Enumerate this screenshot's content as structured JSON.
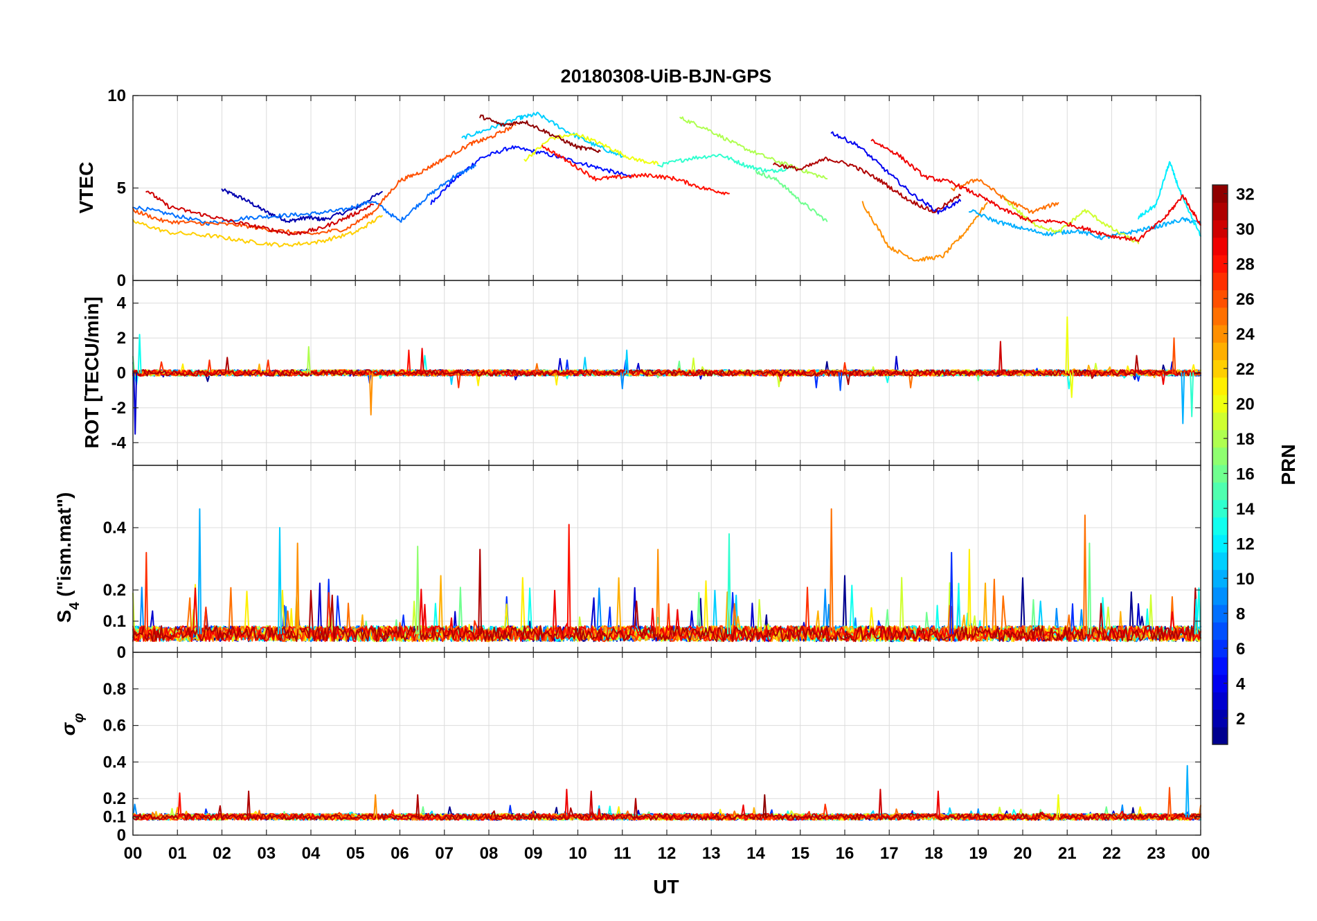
{
  "chart_data": {
    "type": "line",
    "title": "20180308-UiB-BJN-GPS",
    "xlabel": "UT",
    "x_tick_labels": [
      "00",
      "01",
      "02",
      "03",
      "04",
      "05",
      "06",
      "07",
      "08",
      "09",
      "10",
      "11",
      "12",
      "13",
      "14",
      "15",
      "16",
      "17",
      "18",
      "19",
      "20",
      "21",
      "22",
      "23",
      "00"
    ],
    "xlim": [
      0,
      24
    ],
    "grid": true,
    "panels": [
      {
        "id": "vtec",
        "ylabel": "VTEC",
        "ylim": [
          0,
          10
        ],
        "yticks": [
          0,
          5,
          10
        ],
        "ytick_labels": [
          "0",
          "5",
          "10"
        ],
        "series": [
          {
            "prn": 2,
            "x": [
              2.0,
              2.5,
              3.0,
              3.5,
              3.9,
              4.3,
              5.0,
              5.6
            ],
            "values": [
              4.9,
              4.4,
              3.7,
              3.2,
              3.4,
              3.3,
              3.9,
              4.8
            ]
          },
          {
            "prn": 5,
            "x": [
              6.7,
              7.2,
              7.8,
              8.5,
              9.2,
              10.0,
              10.6,
              11.2
            ],
            "values": [
              4.2,
              5.4,
              6.6,
              7.2,
              6.9,
              6.4,
              6.0,
              5.6
            ]
          },
          {
            "prn": 8,
            "x": [
              0.0,
              0.8,
              1.7,
              2.6,
              3.3,
              4.0,
              4.7,
              5.4,
              6.0,
              6.6,
              7.2,
              7.7
            ],
            "values": [
              4.0,
              3.6,
              3.1,
              3.4,
              3.5,
              3.6,
              3.8,
              4.3,
              3.2,
              4.5,
              5.6,
              6.2
            ]
          },
          {
            "prn": 11,
            "x": [
              7.4,
              8.0,
              8.7,
              9.1,
              9.8,
              10.4,
              11.0
            ],
            "values": [
              7.7,
              8.2,
              8.8,
              9.0,
              8.0,
              7.3,
              6.7
            ]
          },
          {
            "prn": 14,
            "x": [
              11.8,
              12.5,
              13.2,
              13.8,
              14.3,
              14.8
            ],
            "values": [
              6.2,
              6.6,
              6.8,
              6.2,
              5.9,
              6.1
            ]
          },
          {
            "prn": 16,
            "x": [
              14.0,
              14.5,
              15.0,
              15.6
            ],
            "values": [
              5.9,
              5.4,
              4.3,
              3.2
            ]
          },
          {
            "prn": 18,
            "x": [
              12.3,
              12.9,
              13.6,
              14.3,
              15.0,
              15.6
            ],
            "values": [
              8.8,
              8.2,
              7.3,
              6.6,
              6.0,
              5.5
            ]
          },
          {
            "prn": 20,
            "x": [
              8.8,
              9.4,
              10.0,
              10.6,
              11.2,
              11.8
            ],
            "values": [
              6.5,
              7.7,
              7.9,
              7.3,
              6.6,
              6.3
            ]
          },
          {
            "prn": 22,
            "x": [
              0.0,
              0.8,
              1.8,
              2.6,
              3.4,
              4.2,
              5.0,
              5.6
            ],
            "values": [
              3.2,
              2.6,
              2.4,
              2.1,
              1.9,
              2.1,
              2.6,
              3.5
            ]
          },
          {
            "prn": 24,
            "x": [
              16.4,
              17.0,
              17.6,
              18.2,
              18.7,
              19.2
            ],
            "values": [
              4.2,
              1.8,
              1.1,
              1.3,
              2.6,
              4.2
            ]
          },
          {
            "prn": 26,
            "x": [
              0.0,
              0.7,
              1.5,
              2.4,
              3.2,
              4.0,
              4.8,
              5.4,
              6.0,
              6.5,
              7.0,
              7.6,
              8.0,
              8.6
            ],
            "values": [
              3.8,
              3.2,
              3.1,
              3.0,
              2.7,
              2.5,
              2.8,
              3.7,
              5.4,
              5.9,
              6.6,
              7.4,
              7.7,
              8.4
            ]
          },
          {
            "prn": 28,
            "x": [
              9.2,
              9.8,
              10.4,
              11.0,
              11.6,
              12.2,
              12.8,
              13.4
            ],
            "values": [
              7.3,
              6.4,
              5.5,
              5.6,
              5.7,
              5.5,
              5.0,
              4.7
            ]
          },
          {
            "prn": 30,
            "x": [
              0.3,
              0.8,
              1.5,
              2.2,
              3.0,
              3.6,
              4.2,
              4.8,
              5.4
            ],
            "values": [
              4.9,
              4.0,
              3.6,
              3.2,
              2.8,
              2.5,
              2.8,
              3.4,
              4.1
            ]
          },
          {
            "prn": 32,
            "x": [
              7.8,
              8.3,
              8.8,
              9.4,
              10.0,
              10.5
            ],
            "values": [
              8.9,
              8.4,
              8.6,
              7.9,
              7.2,
              7.0
            ]
          },
          {
            "prn": 4,
            "x": [
              15.7,
              16.3,
              16.9,
              17.5,
              18.1,
              18.6
            ],
            "values": [
              8.0,
              7.3,
              6.0,
              4.7,
              3.7,
              4.3
            ]
          },
          {
            "prn": 10,
            "x": [
              18.8,
              19.4,
              20.0,
              20.6,
              21.2,
              21.8,
              22.4,
              23.0,
              23.6,
              24.0
            ],
            "values": [
              3.8,
              3.2,
              2.8,
              2.5,
              2.7,
              2.3,
              2.6,
              2.9,
              3.3,
              3.1
            ]
          },
          {
            "prn": 12,
            "x": [
              22.6,
              23.0,
              23.3,
              23.6,
              24.0
            ],
            "values": [
              3.4,
              4.1,
              6.4,
              4.4,
              2.4
            ]
          },
          {
            "prn": 19,
            "x": [
              19.6,
              20.2,
              20.8,
              21.4,
              22.0,
              22.6
            ],
            "values": [
              4.4,
              3.1,
              2.6,
              3.8,
              2.8,
              2.0
            ]
          },
          {
            "prn": 25,
            "x": [
              18.4,
              19.0,
              19.6,
              20.2,
              20.8
            ],
            "values": [
              4.9,
              5.5,
              4.4,
              3.7,
              4.2
            ]
          },
          {
            "prn": 29,
            "x": [
              16.6,
              17.2,
              17.8,
              18.4,
              19.0,
              19.6,
              20.2,
              20.8,
              21.4,
              22.0,
              22.6,
              23.2,
              23.6,
              24.0
            ],
            "values": [
              7.6,
              6.8,
              5.6,
              5.3,
              4.6,
              3.8,
              3.2,
              3.2,
              2.8,
              2.4,
              2.2,
              3.4,
              4.6,
              3.0
            ]
          },
          {
            "prn": 31,
            "x": [
              14.4,
              15.0,
              15.6,
              16.2,
              16.8,
              17.4,
              18.0,
              18.6
            ],
            "values": [
              6.3,
              6.0,
              6.6,
              6.2,
              5.4,
              4.4,
              3.7,
              4.6
            ]
          }
        ]
      },
      {
        "id": "rot",
        "ylabel": "ROT [TECU/min]",
        "ylim": [
          -5.3,
          5.3
        ],
        "yticks": [
          -4,
          -2,
          0,
          2,
          4
        ],
        "ytick_labels": [
          "-4",
          "-2",
          "0",
          "2",
          "4"
        ],
        "spikes": [
          {
            "prn": 3,
            "x": 0.05,
            "value": -3.5
          },
          {
            "prn": 13,
            "x": 0.15,
            "value": 2.2
          },
          {
            "prn": 24,
            "x": 5.35,
            "value": -2.4
          },
          {
            "prn": 28,
            "x": 6.2,
            "value": 1.3
          },
          {
            "prn": 29,
            "x": 6.5,
            "value": 1.4
          },
          {
            "prn": 18,
            "x": 3.95,
            "value": 1.5
          },
          {
            "prn": 11,
            "x": 11.1,
            "value": 1.3
          },
          {
            "prn": 9,
            "x": 11.0,
            "value": -0.9
          },
          {
            "prn": 7,
            "x": 15.9,
            "value": -1.0
          },
          {
            "prn": 30,
            "x": 19.5,
            "value": 1.8
          },
          {
            "prn": 20,
            "x": 21.0,
            "value": 3.2
          },
          {
            "prn": 20,
            "x": 21.1,
            "value": -1.4
          },
          {
            "prn": 10,
            "x": 23.6,
            "value": -2.9
          },
          {
            "prn": 26,
            "x": 23.4,
            "value": 2.0
          },
          {
            "prn": 14,
            "x": 23.8,
            "value": -2.5
          }
        ]
      },
      {
        "id": "s4",
        "ylabel": "S4 (\"ism.mat\")",
        "ylabel_main": "S",
        "ylabel_sub": "4",
        "ylabel_rest": " (\"ism.mat\")",
        "ylim": [
          0,
          0.6
        ],
        "yticks": [
          0,
          0.1,
          0.2,
          0.4
        ],
        "ytick_labels": [
          "0",
          "0.1",
          "0.2",
          "0.4"
        ],
        "spikes": [
          {
            "prn": 10,
            "x": 1.5,
            "value": 0.46
          },
          {
            "prn": 27,
            "x": 0.3,
            "value": 0.32
          },
          {
            "prn": 11,
            "x": 3.3,
            "value": 0.4
          },
          {
            "prn": 24,
            "x": 3.7,
            "value": 0.35
          },
          {
            "prn": 17,
            "x": 6.4,
            "value": 0.34
          },
          {
            "prn": 31,
            "x": 7.8,
            "value": 0.33
          },
          {
            "prn": 28,
            "x": 9.8,
            "value": 0.41
          },
          {
            "prn": 24,
            "x": 11.8,
            "value": 0.33
          },
          {
            "prn": 14,
            "x": 13.4,
            "value": 0.38
          },
          {
            "prn": 25,
            "x": 15.7,
            "value": 0.46
          },
          {
            "prn": 6,
            "x": 18.4,
            "value": 0.32
          },
          {
            "prn": 21,
            "x": 18.8,
            "value": 0.33
          },
          {
            "prn": 25,
            "x": 21.4,
            "value": 0.44
          },
          {
            "prn": 16,
            "x": 21.5,
            "value": 0.35
          },
          {
            "prn": 12,
            "x": 23.9,
            "value": 0.17
          }
        ]
      },
      {
        "id": "sigma_phi",
        "ylabel": "σφ",
        "ylabel_main": "σ",
        "ylabel_sub": "φ",
        "ylim": [
          0,
          1.0
        ],
        "yticks": [
          0,
          0.1,
          0.2,
          0.4,
          0.6,
          0.8
        ],
        "ytick_labels": [
          "0",
          "0.1",
          "0.2",
          "0.4",
          "0.6",
          "0.8"
        ],
        "spikes": [
          {
            "prn": 28,
            "x": 1.05,
            "value": 0.23
          },
          {
            "prn": 31,
            "x": 2.6,
            "value": 0.24
          },
          {
            "prn": 24,
            "x": 5.45,
            "value": 0.22
          },
          {
            "prn": 31,
            "x": 6.4,
            "value": 0.22
          },
          {
            "prn": 29,
            "x": 9.75,
            "value": 0.25
          },
          {
            "prn": 30,
            "x": 10.3,
            "value": 0.24
          },
          {
            "prn": 31,
            "x": 11.3,
            "value": 0.2
          },
          {
            "prn": 32,
            "x": 14.2,
            "value": 0.22
          },
          {
            "prn": 30,
            "x": 16.8,
            "value": 0.25
          },
          {
            "prn": 29,
            "x": 18.1,
            "value": 0.24
          },
          {
            "prn": 20,
            "x": 20.8,
            "value": 0.22
          },
          {
            "prn": 10,
            "x": 23.7,
            "value": 0.38
          },
          {
            "prn": 26,
            "x": 23.3,
            "value": 0.26
          }
        ]
      }
    ],
    "colorbar": {
      "label": "PRN",
      "colormap": "jet",
      "range": [
        1,
        32
      ],
      "ticks": [
        2,
        4,
        6,
        8,
        10,
        12,
        14,
        16,
        18,
        20,
        22,
        24,
        26,
        28,
        30,
        32
      ],
      "tick_labels": [
        "2",
        "4",
        "6",
        "8",
        "10",
        "12",
        "14",
        "16",
        "18",
        "20",
        "22",
        "24",
        "26",
        "28",
        "30",
        "32"
      ],
      "placement": "right"
    }
  }
}
